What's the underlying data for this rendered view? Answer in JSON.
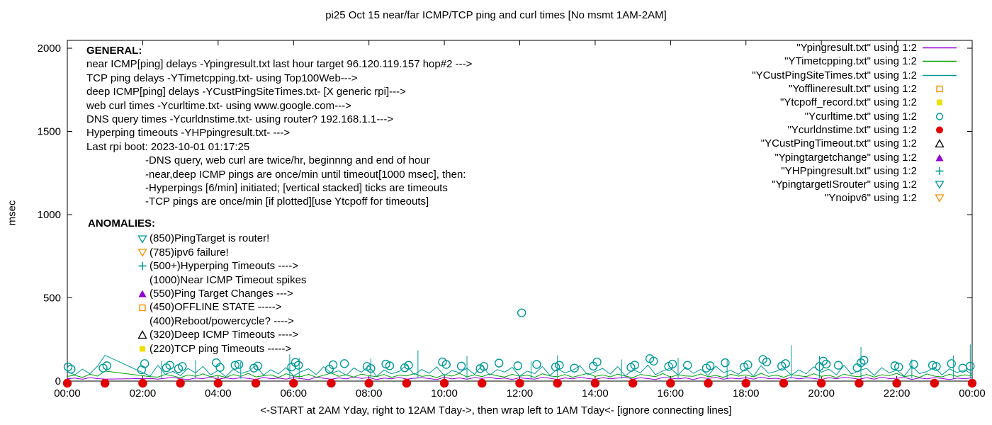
{
  "title": "pi25 Oct 15  near/far ICMP/TCP ping and curl times [No msmt 1AM-2AM]",
  "ylabel": "msec",
  "x_caption": "<-START at 2AM Yday, right to 12AM Tday->, then wrap left to 1AM Tday<- [ignore connecting lines]",
  "general": {
    "heading": "GENERAL:",
    "lines": [
      "near ICMP[ping] delays -Ypingresult.txt last hour target 96.120.119.157 hop#2 --->",
      "TCP ping delays -YTimetcpping.txt- using Top100Web--->",
      "deep ICMP[ping] delays -YCustPingSiteTimes.txt- [X generic rpi]--->",
      "web curl times -Ycurltime.txt- using www.google.com--->",
      "DNS query times -Ycurldnstime.txt- using router? 192.168.1.1--->",
      "Hyperping timeouts -YHPpingresult.txt- --->",
      "Last rpi boot: 2023-10-01 01:17:25"
    ],
    "indented_lines": [
      "-DNS query, web curl are twice/hr, beginnng and end of hour",
      "-near,deep ICMP pings are once/min until timeout[1000 msec], then:",
      " -Hyperpings [6/min] initiated; [vertical stacked] ticks are timeouts",
      "-TCP pings are once/min [if plotted][use Ytcpoff for timeouts]"
    ]
  },
  "anomalies": {
    "heading": "ANOMALIES:",
    "items": [
      {
        "marker": "triangle-down-open",
        "color": "#009999",
        "text": "(850)PingTarget is router!"
      },
      {
        "marker": "triangle-down-open",
        "color": "#ff8c00",
        "text": "(785)ipv6 failure!"
      },
      {
        "marker": "plus",
        "color": "#009999",
        "text": "(500+)Hyperping Timeouts ---->"
      },
      {
        "marker": "none",
        "color": "#000000",
        "text": "(1000)Near ICMP Timeout spikes"
      },
      {
        "marker": "triangle-up-filled",
        "color": "#9400d3",
        "text": "(550)Ping Target Changes --->"
      },
      {
        "marker": "square-open",
        "color": "#ff8c00",
        "text": "(450)OFFLINE STATE ----->"
      },
      {
        "marker": "none",
        "color": "#000000",
        "text": "(400)Reboot/powercycle? ---->"
      },
      {
        "marker": "triangle-up-open",
        "color": "#000000",
        "text": "(320)Deep ICMP Timeouts ---->"
      },
      {
        "marker": "square-filled",
        "color": "#efdf00",
        "text": "(220)TCP ping Timeouts ----->"
      }
    ]
  },
  "legend": {
    "items": [
      {
        "label": "\"Ypingresult.txt\" using 1:2",
        "marker": "line",
        "color": "#9400d3"
      },
      {
        "label": "\"YTimetcpping.txt\" using 1:2",
        "marker": "line",
        "color": "#00a000"
      },
      {
        "label": "\"YCustPingSiteTimes.txt\" using 1:2",
        "marker": "line",
        "color": "#009999"
      },
      {
        "label": "\"Yofflineresult.txt\" using 1:2",
        "marker": "square-open",
        "color": "#ff8c00"
      },
      {
        "label": "\"Ytcpoff_record.txt\" using 1:2",
        "marker": "square-filled",
        "color": "#efdf00"
      },
      {
        "label": "\"Ycurltime.txt\" using 1:2",
        "marker": "circle-open",
        "color": "#009999"
      },
      {
        "label": "\"Ycurldnstime.txt\" using 1:2",
        "marker": "circle-filled",
        "color": "#e00000"
      },
      {
        "label": "\"YCustPingTimeout.txt\" using 1:2",
        "marker": "triangle-up-open",
        "color": "#000000"
      },
      {
        "label": "\"Ypingtargetchange\" using 1:2",
        "marker": "triangle-up-filled",
        "color": "#9400d3"
      },
      {
        "label": "\"YHPpingresult.txt\" using 1:2",
        "marker": "plus",
        "color": "#009999"
      },
      {
        "label": "\"YpingtargetISrouter\" using 1:2",
        "marker": "triangle-down-open",
        "color": "#009999"
      },
      {
        "label": "\"Ynoipv6\" using 1:2",
        "marker": "triangle-down-open",
        "color": "#ff8c00"
      }
    ]
  },
  "chart_data": {
    "type": "line+scatter",
    "title": "pi25 Oct 15  near/far ICMP/TCP ping and curl times [No msmt 1AM-2AM]",
    "ylabel": "msec",
    "x_ticks": [
      "00:00",
      "02:00",
      "04:00",
      "06:00",
      "08:00",
      "10:00",
      "12:00",
      "14:00",
      "16:00",
      "18:00",
      "20:00",
      "22:00",
      "00:00"
    ],
    "y_ticks": [
      0,
      500,
      1000,
      1500,
      2000
    ],
    "x_range_hours": [
      0,
      24
    ],
    "y_range": [
      0,
      2047
    ],
    "note": "No measurement 1AM-2AM; straight connecting lines bridge the gap",
    "series": [
      {
        "name": "Ypingresult.txt",
        "color": "#9400d3",
        "dx_hours": 0.2,
        "values": [
          14,
          18,
          11,
          21,
          15,
          12,
          null,
          null,
          null,
          null,
          null,
          16,
          12,
          17,
          22,
          14,
          9,
          18,
          15,
          24,
          11,
          19,
          13,
          21,
          16,
          10,
          22,
          14,
          18,
          12,
          20,
          15,
          9,
          23,
          17,
          11,
          19,
          13,
          24,
          16,
          21,
          10,
          18,
          14,
          22,
          12,
          17,
          20,
          15,
          9,
          23,
          13,
          19,
          11,
          21,
          16,
          24,
          14,
          18,
          10,
          20,
          15,
          12,
          22,
          17,
          9,
          19,
          13,
          23,
          16,
          11,
          21,
          14,
          18,
          24,
          12,
          20,
          15,
          10,
          22,
          17,
          13,
          19,
          9,
          21,
          16,
          23,
          11,
          18,
          14,
          20,
          12,
          24,
          15,
          17,
          10,
          22,
          13,
          19,
          16,
          9,
          21,
          14,
          23,
          18,
          11,
          20,
          12,
          24,
          15,
          17,
          22,
          10,
          19,
          13,
          21,
          16,
          9,
          18,
          14,
          20
        ]
      },
      {
        "name": "YTimetcpping.txt",
        "color": "#00a000",
        "dx_hours": 0.2,
        "values": [
          28,
          35,
          22,
          41,
          30,
          60,
          null,
          null,
          null,
          null,
          null,
          27,
          24,
          40,
          31,
          20,
          37,
          29,
          43,
          26,
          34,
          22,
          39,
          28,
          46,
          25,
          32,
          38,
          21,
          44,
          30,
          27,
          41,
          23,
          35,
          48,
          29,
          37,
          24,
          42,
          33,
          26,
          40,
          22,
          36,
          31,
          45,
          28,
          34,
          21,
          39,
          30,
          47,
          25,
          38,
          27,
          43,
          32,
          24,
          41,
          29,
          36,
          22,
          44,
          31,
          26,
          39,
          23,
          35,
          46,
          28,
          37,
          25,
          42,
          30,
          21,
          40,
          33,
          27,
          45,
          24,
          38,
          31,
          29,
          43,
          26,
          34,
          22,
          41,
          30,
          37,
          25,
          47,
          28,
          36,
          23,
          39,
          32,
          27,
          44,
          29,
          35,
          21,
          42,
          31,
          26,
          40,
          24,
          38,
          33,
          46,
          27,
          34,
          22,
          43,
          30,
          25,
          41,
          28,
          37,
          32
        ]
      },
      {
        "name": "YCustPingSiteTimes.txt",
        "color": "#009999",
        "dx_hours": 0.2,
        "values": [
          55,
          38,
          72,
          44,
          90,
          155,
          null,
          null,
          null,
          null,
          null,
          30,
          95,
          41,
          58,
          33,
          76,
          49,
          88,
          37,
          64,
          27,
          71,
          46,
          59,
          92,
          36,
          68,
          43,
          81,
          31,
          57,
          74,
          39,
          86,
          48,
          62,
          35,
          79,
          53,
          91,
          28,
          66,
          44,
          58,
          97,
          38,
          70,
          47,
          85,
          32,
          63,
          51,
          77,
          40,
          94,
          36,
          69,
          54,
          82,
          30,
          60,
          45,
          88,
          34,
          73,
          49,
          65,
          92,
          37,
          58,
          76,
          42,
          87,
          31,
          68,
          50,
          96,
          39,
          61,
          78,
          35,
          84,
          46,
          71,
          33,
          89,
          52,
          64,
          41,
          75,
          29,
          93,
          47,
          59,
          80,
          36,
          67,
          44,
          86,
          53,
          72,
          38,
          95,
          42,
          63,
          77,
          34,
          81,
          49,
          66,
          30,
          90,
          45,
          57,
          83,
          37,
          74,
          51,
          68,
          40
        ]
      }
    ],
    "spikes": {
      "color": "#009999",
      "points": [
        [
          2.5,
          120
        ],
        [
          3.4,
          125
        ],
        [
          4.6,
          115
        ],
        [
          5.9,
          160
        ],
        [
          6.15,
          140
        ],
        [
          8.05,
          135
        ],
        [
          9.3,
          185
        ],
        [
          10.6,
          150
        ],
        [
          12.3,
          120
        ],
        [
          13.0,
          155
        ],
        [
          14.7,
          130
        ],
        [
          16.2,
          140
        ],
        [
          17.5,
          125
        ],
        [
          19.2,
          215
        ],
        [
          19.95,
          150
        ],
        [
          21.05,
          205
        ],
        [
          22.4,
          130
        ],
        [
          23.5,
          155
        ],
        [
          23.95,
          220
        ]
      ]
    },
    "curl_points": {
      "name": "Ycurltime.txt",
      "marker": "circle-open",
      "color": "#009999",
      "points": [
        [
          0.02,
          85
        ],
        [
          0.1,
          72
        ],
        [
          0.95,
          78
        ],
        [
          1.05,
          92
        ],
        [
          1.97,
          68
        ],
        [
          2.05,
          105
        ],
        [
          2.63,
          80
        ],
        [
          2.72,
          95
        ],
        [
          2.95,
          75
        ],
        [
          3.05,
          88
        ],
        [
          3.95,
          110
        ],
        [
          4.05,
          82
        ],
        [
          4.45,
          95
        ],
        [
          4.55,
          100
        ],
        [
          4.95,
          78
        ],
        [
          5.05,
          90
        ],
        [
          5.95,
          85
        ],
        [
          6.05,
          112
        ],
        [
          6.13,
          95
        ],
        [
          6.95,
          72
        ],
        [
          7.05,
          98
        ],
        [
          7.35,
          105
        ],
        [
          7.95,
          88
        ],
        [
          8.05,
          76
        ],
        [
          8.45,
          102
        ],
        [
          8.55,
          92
        ],
        [
          8.95,
          80
        ],
        [
          9.05,
          95
        ],
        [
          9.95,
          115
        ],
        [
          10.05,
          100
        ],
        [
          10.45,
          90
        ],
        [
          10.95,
          75
        ],
        [
          11.05,
          88
        ],
        [
          11.45,
          108
        ],
        [
          11.95,
          92
        ],
        [
          12.05,
          410
        ],
        [
          12.45,
          100
        ],
        [
          12.95,
          85
        ],
        [
          13.05,
          95
        ],
        [
          13.45,
          78
        ],
        [
          13.95,
          90
        ],
        [
          14.05,
          115
        ],
        [
          14.95,
          82
        ],
        [
          15.05,
          96
        ],
        [
          15.45,
          135
        ],
        [
          15.55,
          120
        ],
        [
          15.95,
          88
        ],
        [
          16.05,
          102
        ],
        [
          16.45,
          95
        ],
        [
          16.95,
          78
        ],
        [
          17.05,
          92
        ],
        [
          17.45,
          110
        ],
        [
          17.95,
          85
        ],
        [
          18.05,
          98
        ],
        [
          18.45,
          130
        ],
        [
          18.55,
          115
        ],
        [
          18.95,
          90
        ],
        [
          19.05,
          105
        ],
        [
          19.95,
          88
        ],
        [
          20.05,
          120
        ],
        [
          20.13,
          102
        ],
        [
          20.45,
          95
        ],
        [
          20.95,
          80
        ],
        [
          21.05,
          110
        ],
        [
          21.13,
          125
        ],
        [
          21.95,
          92
        ],
        [
          22.05,
          85
        ],
        [
          22.45,
          100
        ],
        [
          22.95,
          95
        ],
        [
          23.05,
          88
        ],
        [
          23.45,
          105
        ],
        [
          23.75,
          78
        ],
        [
          23.95,
          90
        ]
      ]
    },
    "dns_points": {
      "name": "Ycurldnstime.txt",
      "marker": "circle-filled",
      "color": "#e00000",
      "y": 0,
      "x_hours": [
        0,
        1,
        2,
        3,
        4,
        5,
        6,
        7,
        8,
        9,
        10,
        11,
        12,
        13,
        14,
        15,
        16,
        17,
        18,
        19,
        20,
        21,
        22,
        23,
        24
      ]
    }
  }
}
